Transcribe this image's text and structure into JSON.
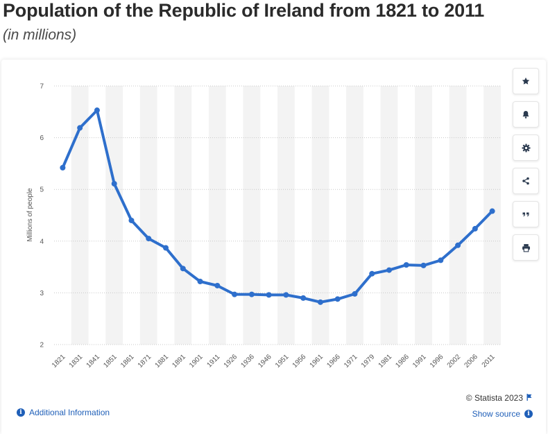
{
  "header": {
    "title": "Population of the Republic of Ireland from 1821 to 2011",
    "subtitle": "(in millions)"
  },
  "toolbar": {
    "buttons": [
      {
        "name": "favorite-button",
        "icon": "star-icon"
      },
      {
        "name": "notification-button",
        "icon": "bell-icon"
      },
      {
        "name": "settings-button",
        "icon": "gear-icon"
      },
      {
        "name": "share-button",
        "icon": "share-icon"
      },
      {
        "name": "cite-button",
        "icon": "quote-icon"
      },
      {
        "name": "print-button",
        "icon": "printer-icon"
      }
    ]
  },
  "footer": {
    "additional_info": "Additional Information",
    "copyright": "© Statista 2023",
    "show_source": "Show source"
  },
  "colors": {
    "line": "#2e6fcc",
    "link": "#1f5fb8",
    "band": "#f3f3f3",
    "grid": "#c8c8c8"
  },
  "chart_data": {
    "type": "line",
    "title": "",
    "xlabel": "",
    "ylabel": "Millions of people",
    "ylim": [
      2,
      7
    ],
    "yticks": [
      2,
      3,
      4,
      5,
      6,
      7
    ],
    "grid": true,
    "categories": [
      "1821",
      "1831",
      "1841",
      "1851",
      "1861",
      "1871",
      "1881",
      "1891",
      "1901",
      "1911",
      "1926",
      "1936",
      "1946",
      "1951",
      "1956",
      "1961",
      "1966",
      "1971",
      "1979",
      "1981",
      "1986",
      "1991",
      "1996",
      "2002",
      "2006",
      "2011"
    ],
    "series": [
      {
        "values": [
          5.42,
          6.19,
          6.53,
          5.11,
          4.4,
          4.05,
          3.87,
          3.47,
          3.22,
          3.14,
          2.97,
          2.97,
          2.96,
          2.96,
          2.9,
          2.82,
          2.88,
          2.98,
          3.37,
          3.44,
          3.54,
          3.53,
          3.63,
          3.92,
          4.24,
          4.58
        ]
      }
    ]
  }
}
